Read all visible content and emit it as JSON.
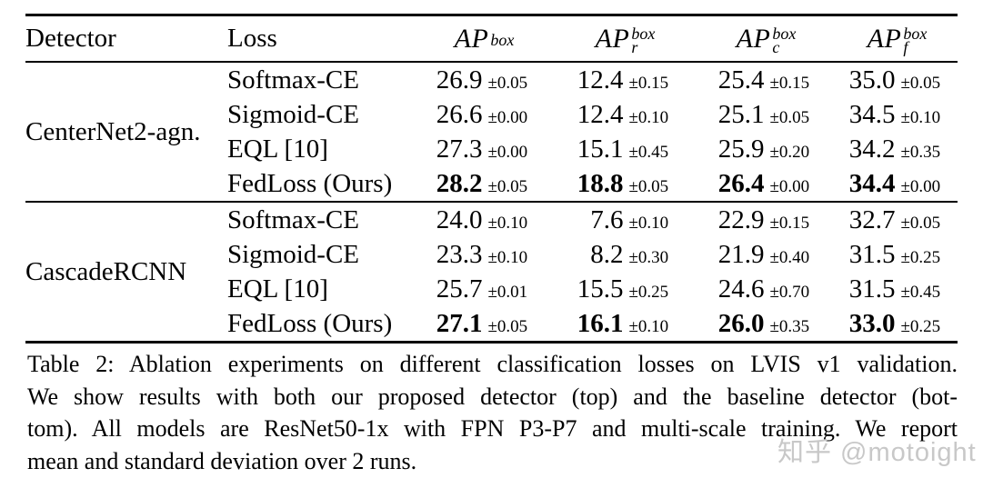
{
  "page": {
    "background": "#ffffff",
    "text_color": "#000000",
    "rule_color": "#000000"
  },
  "table": {
    "columns": {
      "detector": "Detector",
      "loss": "Loss",
      "ap": "AP",
      "sup": "box",
      "sub_plain": "",
      "sub_r": "r",
      "sub_c": "c",
      "sub_f": "f"
    },
    "groups": [
      {
        "detector": "CenterNet2-agn.",
        "rows": [
          {
            "loss": "Softmax-CE",
            "bold": false,
            "cells": [
              {
                "v": "26.9",
                "pm": "±0.05"
              },
              {
                "v": "12.4",
                "pm": "±0.15"
              },
              {
                "v": "25.4",
                "pm": "±0.15"
              },
              {
                "v": "35.0",
                "pm": "±0.05"
              }
            ]
          },
          {
            "loss": "Sigmoid-CE",
            "bold": false,
            "cells": [
              {
                "v": "26.6",
                "pm": "±0.00"
              },
              {
                "v": "12.4",
                "pm": "±0.10"
              },
              {
                "v": "25.1",
                "pm": "±0.05"
              },
              {
                "v": "34.5",
                "pm": "±0.10"
              }
            ]
          },
          {
            "loss": "EQL [10]",
            "bold": false,
            "cells": [
              {
                "v": "27.3",
                "pm": "±0.00"
              },
              {
                "v": "15.1",
                "pm": "±0.45"
              },
              {
                "v": "25.9",
                "pm": "±0.20"
              },
              {
                "v": "34.2",
                "pm": "±0.35"
              }
            ]
          },
          {
            "loss": "FedLoss (Ours)",
            "bold": true,
            "cells": [
              {
                "v": "28.2",
                "pm": "±0.05"
              },
              {
                "v": "18.8",
                "pm": "±0.05"
              },
              {
                "v": "26.4",
                "pm": "±0.00"
              },
              {
                "v": "34.4",
                "pm": "±0.00"
              }
            ]
          }
        ]
      },
      {
        "detector": "CascadeRCNN",
        "rows": [
          {
            "loss": "Softmax-CE",
            "bold": false,
            "cells": [
              {
                "v": "24.0",
                "pm": "±0.10"
              },
              {
                "v": "7.6",
                "pm": "±0.10"
              },
              {
                "v": "22.9",
                "pm": "±0.15"
              },
              {
                "v": "32.7",
                "pm": "±0.05"
              }
            ]
          },
          {
            "loss": "Sigmoid-CE",
            "bold": false,
            "cells": [
              {
                "v": "23.3",
                "pm": "±0.10"
              },
              {
                "v": "8.2",
                "pm": "±0.30"
              },
              {
                "v": "21.9",
                "pm": "±0.40"
              },
              {
                "v": "31.5",
                "pm": "±0.25"
              }
            ]
          },
          {
            "loss": "EQL [10]",
            "bold": false,
            "cells": [
              {
                "v": "25.7",
                "pm": "±0.01"
              },
              {
                "v": "15.5",
                "pm": "±0.25"
              },
              {
                "v": "24.6",
                "pm": "±0.70"
              },
              {
                "v": "31.5",
                "pm": "±0.45"
              }
            ]
          },
          {
            "loss": "FedLoss (Ours)",
            "bold": true,
            "cells": [
              {
                "v": "27.1",
                "pm": "±0.05"
              },
              {
                "v": "16.1",
                "pm": "±0.10"
              },
              {
                "v": "26.0",
                "pm": "±0.35"
              },
              {
                "v": "33.0",
                "pm": "±0.25"
              }
            ]
          }
        ]
      }
    ]
  },
  "caption": {
    "lines": [
      "Table 2: Ablation experiments on different classification losses on LVIS v1 validation.",
      "We show results with both our proposed detector (top) and the baseline detector (bot-",
      "tom). All models are ResNet50-1x with FPN P3-P7 and multi-scale training. We report",
      "mean and standard deviation over 2 runs."
    ]
  },
  "watermark": {
    "text": "知乎 @motoight",
    "color": "#c8c8c8"
  }
}
